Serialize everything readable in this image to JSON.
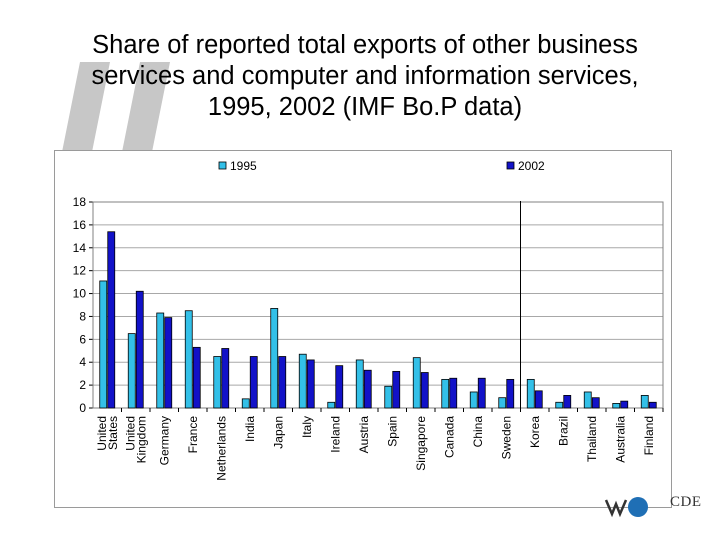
{
  "title": {
    "lines": [
      "Share of reported total exports of other business",
      "services and computer and information services,",
      "1995, 2002 (IMF Bo.P data)"
    ]
  },
  "logo": {
    "text": "CDE"
  },
  "colors": {
    "series_1995": "#33c0e8",
    "series_2002": "#1212c8",
    "grid": "#a8a8a8",
    "text": "#000000",
    "quote_deco": "#c7c7c7",
    "logo_circle": "#1f6fb5"
  },
  "chart_data": {
    "type": "bar",
    "title": "",
    "xlabel": "",
    "ylabel": "",
    "ylim": [
      0,
      18
    ],
    "yticks": [
      0,
      2,
      4,
      6,
      8,
      10,
      12,
      14,
      16,
      18
    ],
    "grid": true,
    "legend_position": "top",
    "categories": [
      "United States",
      "United Kingdom",
      "Germany",
      "France",
      "Netherlands",
      "India",
      "Japan",
      "Italy",
      "Ireland",
      "Austria",
      "Spain",
      "Singapore",
      "Canada",
      "China",
      "Sweden",
      "Korea",
      "Brazil",
      "Thailand",
      "Australia",
      "Finland"
    ],
    "category_label_lines": [
      [
        "United",
        "States"
      ],
      [
        "United",
        "Kingdom"
      ],
      [
        "Germany"
      ],
      [
        "France"
      ],
      [
        "Netherlands"
      ],
      [
        "India"
      ],
      [
        "Japan"
      ],
      [
        "Italy"
      ],
      [
        "Ireland"
      ],
      [
        "Austria"
      ],
      [
        "Spain"
      ],
      [
        "Singapore"
      ],
      [
        "Canada"
      ],
      [
        "China"
      ],
      [
        "Sweden"
      ],
      [
        "Korea"
      ],
      [
        "Brazil"
      ],
      [
        "Thailand"
      ],
      [
        "Australia"
      ],
      [
        "Finland"
      ]
    ],
    "series": [
      {
        "name": "1995",
        "values": [
          11.1,
          6.5,
          8.3,
          8.5,
          4.5,
          0.8,
          8.7,
          4.7,
          0.5,
          4.2,
          1.9,
          4.4,
          2.5,
          1.4,
          0.9,
          2.5,
          0.5,
          1.4,
          0.4,
          1.1
        ]
      },
      {
        "name": "2002",
        "values": [
          15.4,
          10.2,
          7.9,
          5.3,
          5.2,
          4.5,
          4.5,
          4.2,
          3.7,
          3.3,
          3.2,
          3.1,
          2.6,
          2.6,
          2.5,
          1.5,
          1.1,
          0.9,
          0.6,
          0.5
        ]
      }
    ],
    "divider_after_category": "Sweden"
  }
}
